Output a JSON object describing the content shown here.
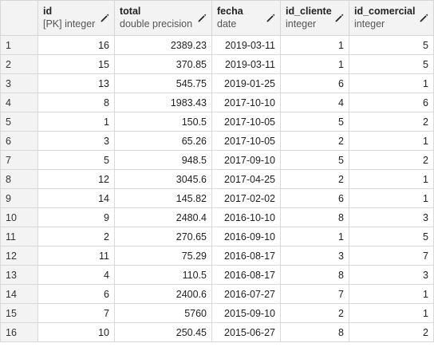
{
  "columns": [
    {
      "name": "",
      "type": ""
    },
    {
      "name": "id",
      "type": "[PK] integer"
    },
    {
      "name": "total",
      "type": "double precision"
    },
    {
      "name": "fecha",
      "type": "date"
    },
    {
      "name": "id_cliente",
      "type": "integer"
    },
    {
      "name": "id_comercial",
      "type": "integer"
    }
  ],
  "rows": [
    {
      "n": "1",
      "id": "16",
      "total": "2389.23",
      "fecha": "2019-03-11",
      "id_cliente": "1",
      "id_comercial": "5"
    },
    {
      "n": "2",
      "id": "15",
      "total": "370.85",
      "fecha": "2019-03-11",
      "id_cliente": "1",
      "id_comercial": "5"
    },
    {
      "n": "3",
      "id": "13",
      "total": "545.75",
      "fecha": "2019-01-25",
      "id_cliente": "6",
      "id_comercial": "1"
    },
    {
      "n": "4",
      "id": "8",
      "total": "1983.43",
      "fecha": "2017-10-10",
      "id_cliente": "4",
      "id_comercial": "6"
    },
    {
      "n": "5",
      "id": "1",
      "total": "150.5",
      "fecha": "2017-10-05",
      "id_cliente": "5",
      "id_comercial": "2"
    },
    {
      "n": "6",
      "id": "3",
      "total": "65.26",
      "fecha": "2017-10-05",
      "id_cliente": "2",
      "id_comercial": "1"
    },
    {
      "n": "7",
      "id": "5",
      "total": "948.5",
      "fecha": "2017-09-10",
      "id_cliente": "5",
      "id_comercial": "2"
    },
    {
      "n": "8",
      "id": "12",
      "total": "3045.6",
      "fecha": "2017-04-25",
      "id_cliente": "2",
      "id_comercial": "1"
    },
    {
      "n": "9",
      "id": "14",
      "total": "145.82",
      "fecha": "2017-02-02",
      "id_cliente": "6",
      "id_comercial": "1"
    },
    {
      "n": "10",
      "id": "9",
      "total": "2480.4",
      "fecha": "2016-10-10",
      "id_cliente": "8",
      "id_comercial": "3"
    },
    {
      "n": "11",
      "id": "2",
      "total": "270.65",
      "fecha": "2016-09-10",
      "id_cliente": "1",
      "id_comercial": "5"
    },
    {
      "n": "12",
      "id": "11",
      "total": "75.29",
      "fecha": "2016-08-17",
      "id_cliente": "3",
      "id_comercial": "7"
    },
    {
      "n": "13",
      "id": "4",
      "total": "110.5",
      "fecha": "2016-08-17",
      "id_cliente": "8",
      "id_comercial": "3"
    },
    {
      "n": "14",
      "id": "6",
      "total": "2400.6",
      "fecha": "2016-07-27",
      "id_cliente": "7",
      "id_comercial": "1"
    },
    {
      "n": "15",
      "id": "7",
      "total": "5760",
      "fecha": "2015-09-10",
      "id_cliente": "2",
      "id_comercial": "1"
    },
    {
      "n": "16",
      "id": "10",
      "total": "250.45",
      "fecha": "2015-06-27",
      "id_cliente": "8",
      "id_comercial": "2"
    }
  ],
  "icons": {
    "edit": "pencil-icon"
  },
  "colors": {
    "header_bg": "#f3f3f3",
    "border": "#d9d9d9",
    "text": "#222222"
  }
}
